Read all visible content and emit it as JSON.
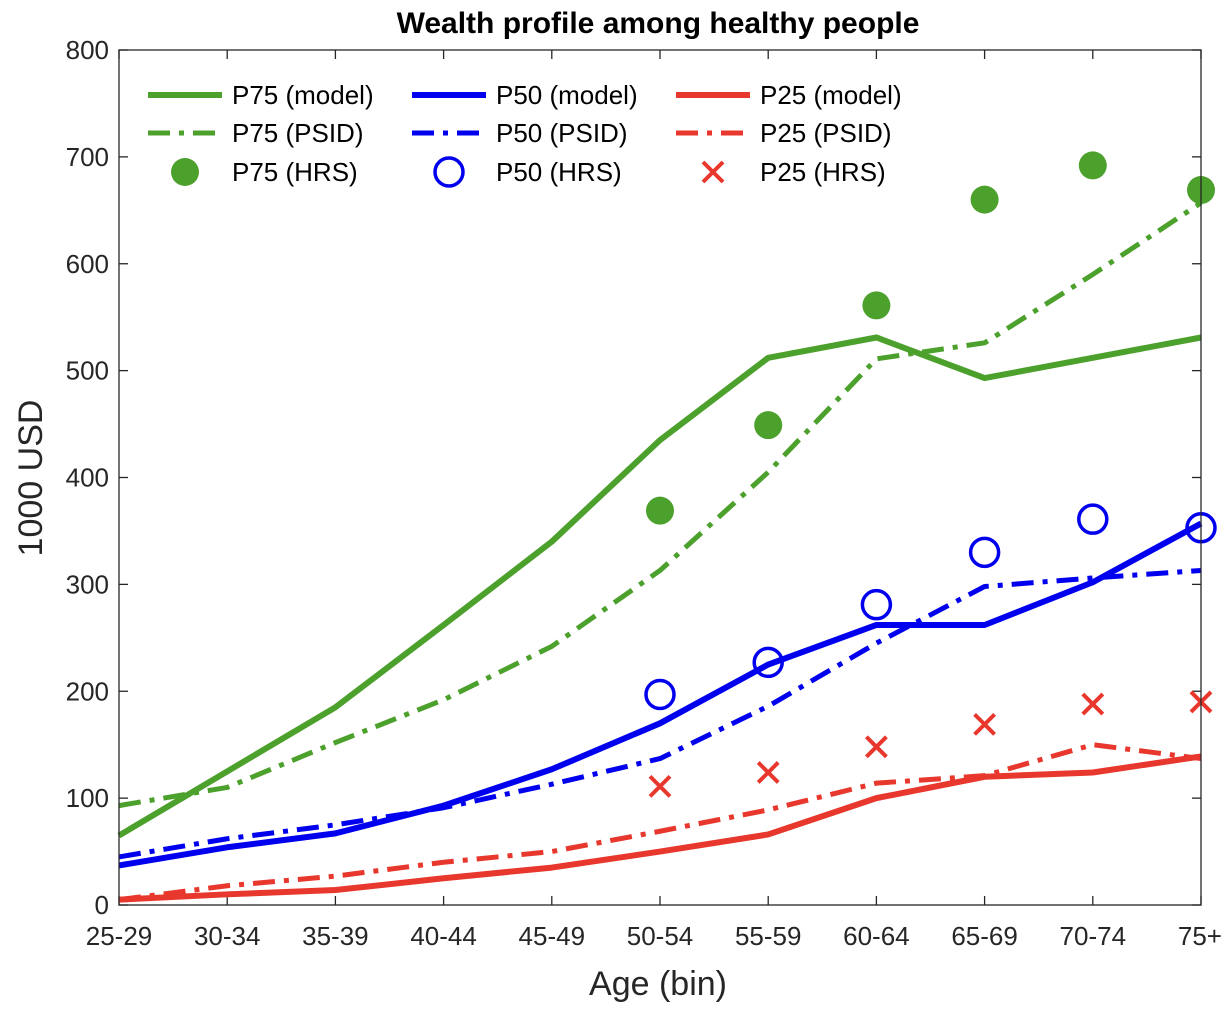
{
  "chart_data": {
    "type": "line",
    "title": "Wealth profile among healthy people",
    "xlabel": "Age (bin)",
    "ylabel": "1000 USD",
    "categories": [
      "25-29",
      "30-34",
      "35-39",
      "40-44",
      "45-49",
      "50-54",
      "55-59",
      "60-64",
      "65-69",
      "70-74",
      "75+"
    ],
    "ylim": [
      0,
      800
    ],
    "yticks": [
      0,
      100,
      200,
      300,
      400,
      500,
      600,
      700,
      800
    ],
    "grid": false,
    "legend_position": "top-left, 3 columns",
    "series": [
      {
        "name": "P75 (model)",
        "color": "#4ca02c",
        "style": "solid",
        "marker": "none",
        "values": [
          65,
          125,
          185,
          262,
          340,
          435,
          512,
          531,
          493,
          512,
          531
        ]
      },
      {
        "name": "P50 (model)",
        "color": "#0000ee",
        "style": "solid",
        "marker": "none",
        "values": [
          37,
          54,
          67,
          93,
          127,
          170,
          225,
          262,
          262,
          302,
          357
        ]
      },
      {
        "name": "P25 (model)",
        "color": "#e8372d",
        "style": "solid",
        "marker": "none",
        "values": [
          5,
          10,
          14,
          25,
          35,
          50,
          66,
          100,
          120,
          124,
          139
        ]
      },
      {
        "name": "P75 (PSID)",
        "color": "#4ca02c",
        "style": "dashdot",
        "marker": "none",
        "values": [
          93,
          110,
          152,
          192,
          242,
          313,
          405,
          511,
          526,
          590,
          657
        ]
      },
      {
        "name": "P50 (PSID)",
        "color": "#0000ee",
        "style": "dashdot",
        "marker": "none",
        "values": [
          45,
          62,
          75,
          91,
          113,
          137,
          186,
          245,
          298,
          306,
          313
        ]
      },
      {
        "name": "P25 (PSID)",
        "color": "#e8372d",
        "style": "dashdot",
        "marker": "none",
        "values": [
          5,
          18,
          27,
          40,
          50,
          69,
          89,
          114,
          121,
          150,
          137
        ]
      },
      {
        "name": "P75 (HRS)",
        "color": "#4ca02c",
        "style": "none",
        "marker": "filled-circle",
        "values": [
          null,
          null,
          null,
          null,
          null,
          369,
          449,
          561,
          660,
          692,
          669
        ]
      },
      {
        "name": "P50 (HRS)",
        "color": "#0000ee",
        "style": "none",
        "marker": "open-circle",
        "values": [
          null,
          null,
          null,
          null,
          null,
          197,
          227,
          281,
          330,
          361,
          353
        ]
      },
      {
        "name": "P25 (HRS)",
        "color": "#e8372d",
        "style": "none",
        "marker": "x",
        "values": [
          null,
          null,
          null,
          null,
          null,
          111,
          124,
          148,
          169,
          188,
          190
        ]
      }
    ]
  }
}
